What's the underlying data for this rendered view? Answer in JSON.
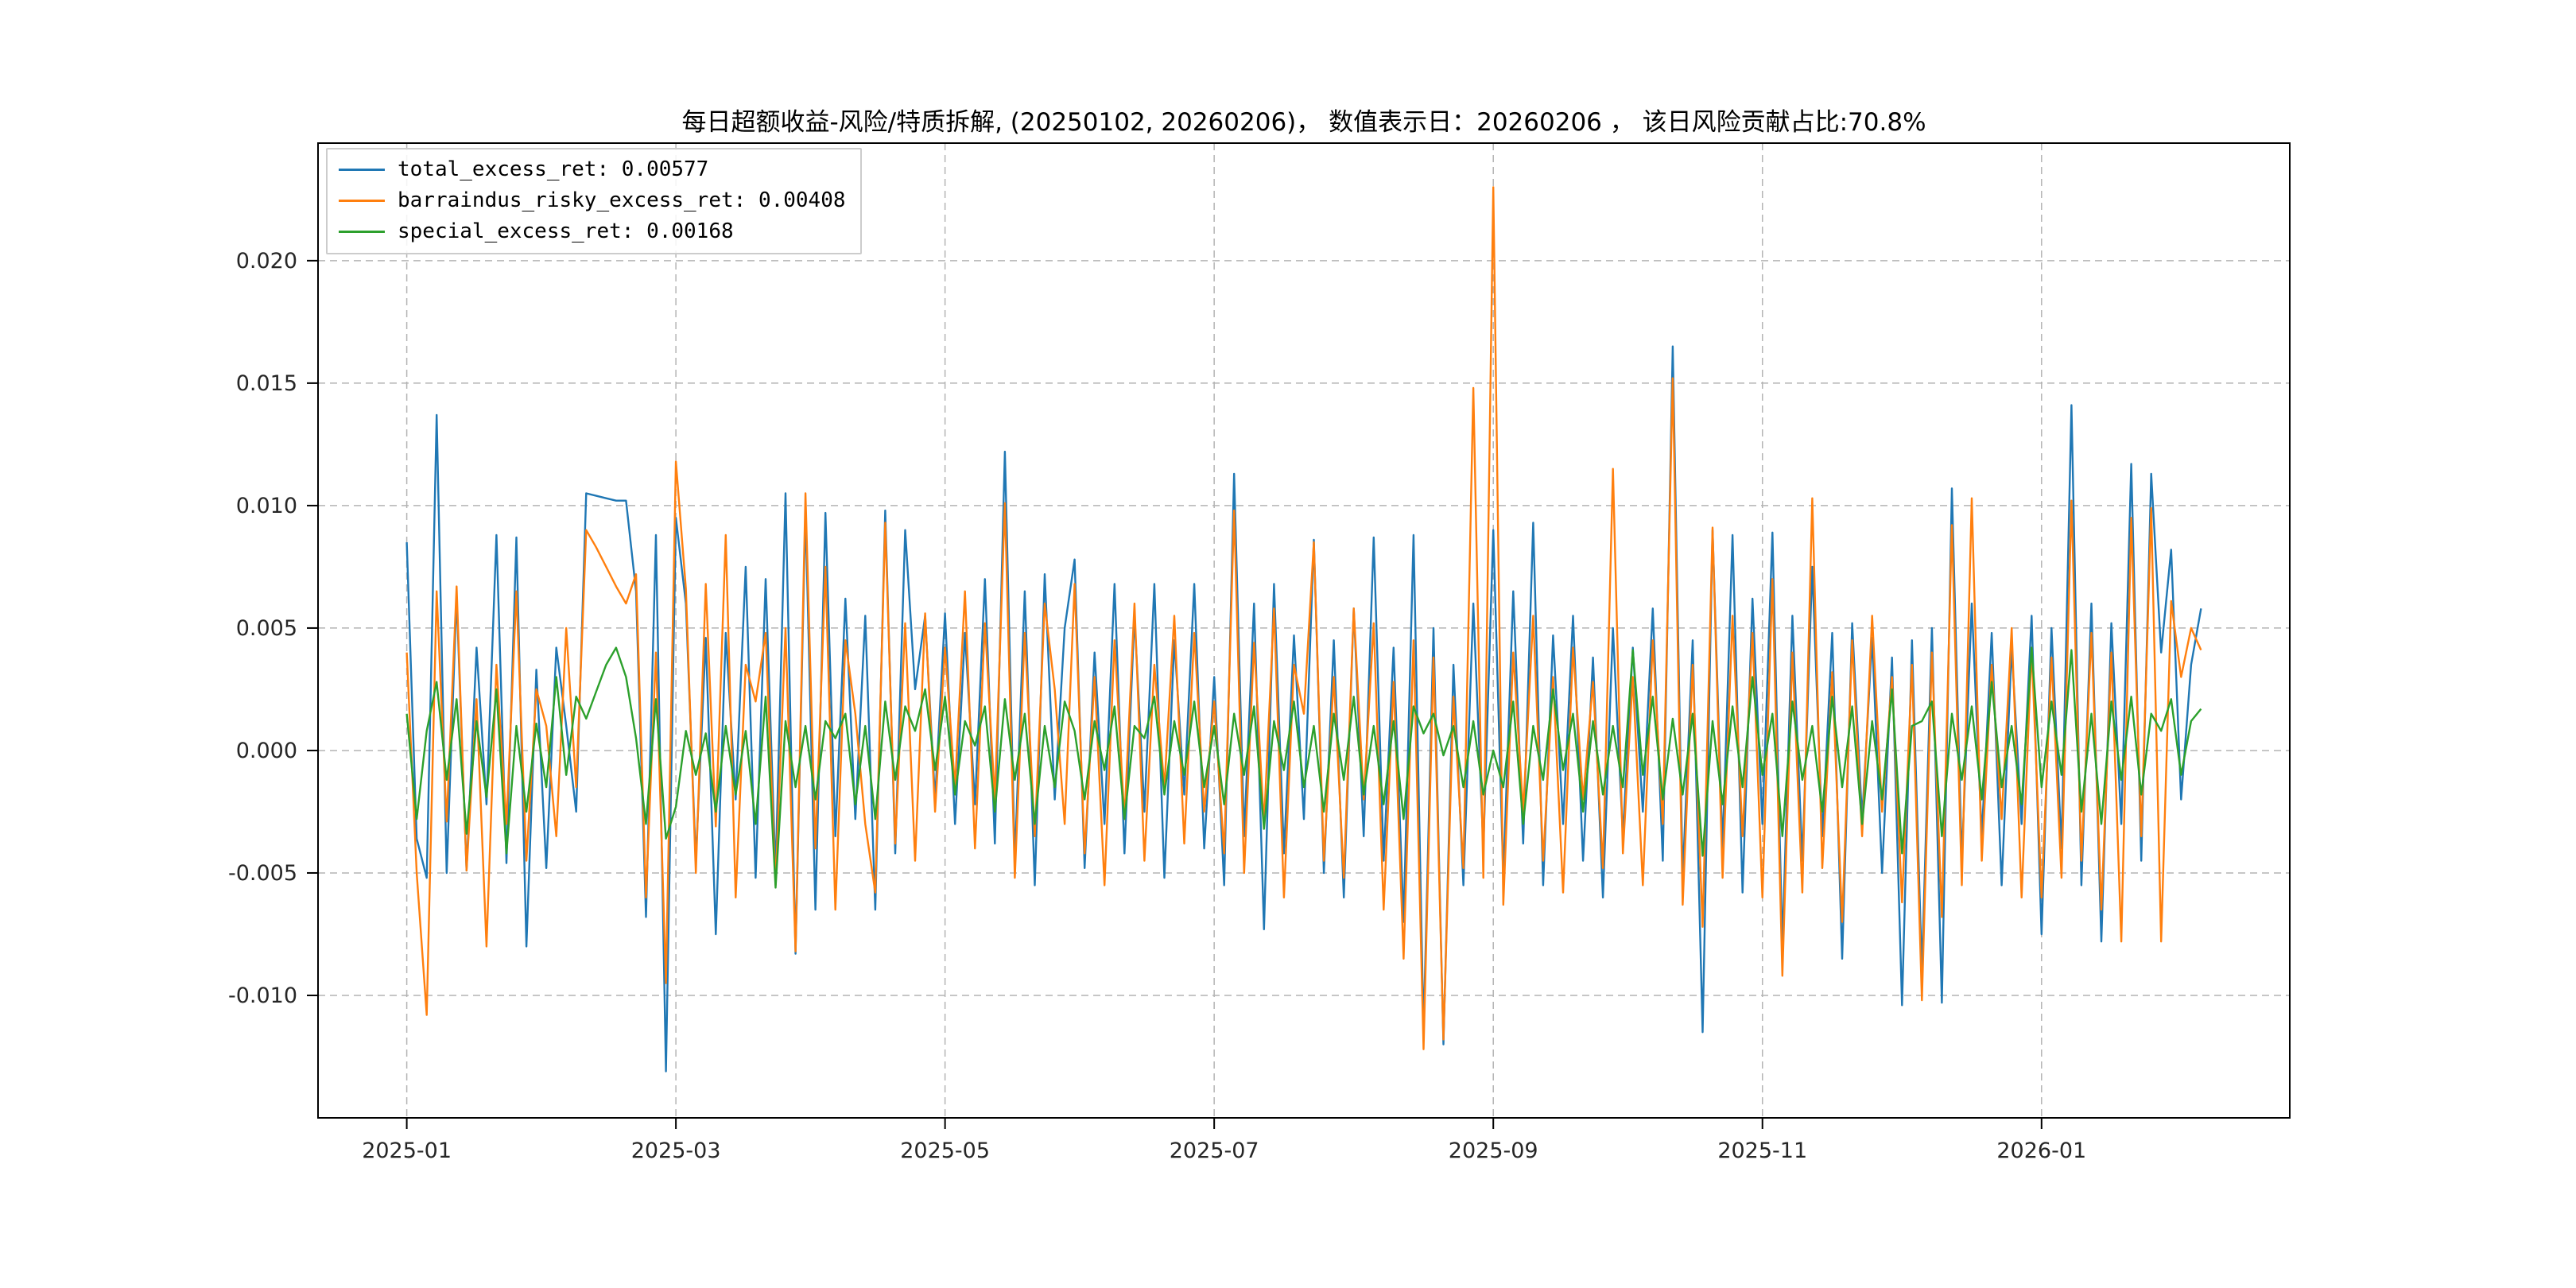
{
  "title": "每日超额收益-风险/特质拆解, (20250102, 20260206)， 数值表示日：20260206 ， 该日风险贡献占比:70.8%",
  "legend": [
    {
      "label": "total_excess_ret: 0.00577",
      "color": "#1f77b4"
    },
    {
      "label": "barraindus_risky_excess_ret: 0.00408",
      "color": "#ff7f0e"
    },
    {
      "label": "special_excess_ret: 0.00168",
      "color": "#2ca02c"
    }
  ],
  "chart_data": {
    "type": "line",
    "title": "每日超额收益-风险/特质拆解, (20250102, 20260206)， 数值表示日：20260206 ， 该日风险贡献占比:70.8%",
    "date_range": [
      "20250102",
      "20260206"
    ],
    "grid": "dashed",
    "legend_position": "upper-left",
    "x_axis": {
      "n_points": 181,
      "tick_labels": [
        "2025-01",
        "2025-03",
        "2025-05",
        "2025-07",
        "2025-09",
        "2025-11",
        "2026-01"
      ],
      "tick_indices": [
        0,
        27,
        54,
        81,
        109,
        136,
        164
      ]
    },
    "y_axis": {
      "ticks": [
        -0.01,
        -0.005,
        0.0,
        0.005,
        0.01,
        0.015,
        0.02
      ],
      "tick_labels": [
        "-0.010",
        "-0.005",
        "0.000",
        "0.005",
        "0.010",
        "0.015",
        "0.020"
      ],
      "ylim": [
        -0.015,
        0.0248
      ]
    },
    "series": [
      {
        "name": "total_excess_ret",
        "color": "#1f77b4",
        "last_value": 0.00577,
        "values": [
          0.0085,
          -0.0036,
          -0.0052,
          0.0137,
          -0.005,
          0.0063,
          -0.0049,
          0.0042,
          -0.0022,
          0.0088,
          -0.0046,
          0.0087,
          -0.008,
          0.0033,
          -0.0048,
          0.0042,
          0.001,
          -0.0025,
          0.0105,
          0.0104,
          0.0103,
          0.0102,
          0.0102,
          0.0065,
          -0.0068,
          0.0088,
          -0.0131,
          0.0095,
          0.006,
          -0.0045,
          0.0046,
          -0.0075,
          0.0048,
          -0.002,
          0.0075,
          -0.0052,
          0.007,
          -0.005,
          0.0105,
          -0.0083,
          0.0098,
          -0.0065,
          0.0097,
          -0.0035,
          0.0062,
          -0.0028,
          0.0055,
          -0.0065,
          0.0098,
          -0.0042,
          0.009,
          0.0025,
          0.0055,
          -0.002,
          0.0056,
          -0.003,
          0.0048,
          -0.0022,
          0.007,
          -0.0038,
          0.0122,
          -0.0045,
          0.0065,
          -0.0055,
          0.0072,
          -0.002,
          0.005,
          0.0078,
          -0.0048,
          0.004,
          -0.003,
          0.0068,
          -0.0042,
          0.0055,
          -0.0025,
          0.0068,
          -0.0052,
          0.0045,
          -0.0018,
          0.0068,
          -0.004,
          0.003,
          -0.0055,
          0.0113,
          -0.0035,
          0.006,
          -0.0073,
          0.0068,
          -0.0042,
          0.0047,
          -0.0028,
          0.0086,
          -0.005,
          0.0045,
          -0.006,
          0.0058,
          -0.0035,
          0.0087,
          -0.0045,
          0.0042,
          -0.007,
          0.0088,
          -0.0115,
          0.005,
          -0.012,
          0.0035,
          -0.0055,
          0.006,
          -0.004,
          0.009,
          -0.0052,
          0.0065,
          -0.0038,
          0.0093,
          -0.0055,
          0.0047,
          -0.003,
          0.0055,
          -0.0045,
          0.0038,
          -0.006,
          0.005,
          -0.0035,
          0.0042,
          -0.0025,
          0.0058,
          -0.0045,
          0.0165,
          -0.0052,
          0.0045,
          -0.0115,
          0.009,
          -0.004,
          0.0088,
          -0.0058,
          0.0062,
          -0.003,
          0.0089,
          -0.008,
          0.0055,
          -0.0045,
          0.0075,
          -0.0035,
          0.0048,
          -0.0085,
          0.0052,
          -0.0028,
          0.0046,
          -0.005,
          0.0038,
          -0.0104,
          0.0045,
          -0.009,
          0.005,
          -0.0103,
          0.0107,
          -0.0045,
          0.006,
          -0.0035,
          0.0048,
          -0.0055,
          0.0042,
          -0.003,
          0.0055,
          -0.0075,
          0.005,
          -0.004,
          0.0141,
          -0.0055,
          0.006,
          -0.0078,
          0.0052,
          -0.003,
          0.0117,
          -0.0045,
          0.0113,
          0.004,
          0.0082,
          -0.002,
          0.0035,
          0.0058
        ]
      },
      {
        "name": "barraindus_risky_excess_ret",
        "color": "#ff7f0e",
        "last_value": 0.00408,
        "values": [
          0.004,
          -0.005,
          -0.0108,
          0.0065,
          -0.0029,
          0.0067,
          -0.0049,
          0.0021,
          -0.008,
          0.0035,
          -0.003,
          0.0065,
          -0.0045,
          0.0025,
          0.001,
          -0.0035,
          0.005,
          -0.0015,
          0.009,
          0.0083,
          0.0075,
          0.0067,
          0.006,
          0.0072,
          -0.006,
          0.004,
          -0.0095,
          0.0118,
          0.0066,
          -0.005,
          0.0068,
          -0.0031,
          0.0088,
          -0.006,
          0.0035,
          0.002,
          0.0048,
          -0.0055,
          0.005,
          -0.0082,
          0.0105,
          -0.004,
          0.0075,
          -0.0065,
          0.0045,
          0.0015,
          -0.003,
          -0.0058,
          0.0093,
          -0.0038,
          0.0052,
          -0.0045,
          0.0056,
          -0.0025,
          0.0042,
          -0.0015,
          0.0065,
          -0.004,
          0.0052,
          -0.002,
          0.0101,
          -0.0052,
          0.0048,
          -0.0035,
          0.006,
          0.0025,
          -0.003,
          0.0068,
          -0.0042,
          0.003,
          -0.0055,
          0.0045,
          -0.0028,
          0.006,
          -0.0045,
          0.0035,
          -0.0015,
          0.0055,
          -0.0038,
          0.0048,
          -0.0025,
          0.002,
          -0.0042,
          0.0098,
          -0.005,
          0.0044,
          -0.003,
          0.0058,
          -0.006,
          0.0035,
          0.0015,
          0.0085,
          -0.0045,
          0.003,
          -0.0052,
          0.0058,
          -0.002,
          0.0052,
          -0.0065,
          0.0028,
          -0.0085,
          0.0045,
          -0.0122,
          0.0038,
          -0.0118,
          0.0022,
          -0.0048,
          0.0148,
          -0.0052,
          0.023,
          -0.0063,
          0.004,
          -0.0025,
          0.0055,
          -0.0045,
          0.003,
          -0.0058,
          0.0042,
          -0.002,
          0.0028,
          -0.0048,
          0.0115,
          -0.0042,
          0.003,
          -0.0055,
          0.0045,
          -0.003,
          0.0152,
          -0.0063,
          0.0035,
          -0.0072,
          0.0091,
          -0.0052,
          0.0055,
          -0.0035,
          0.0048,
          -0.006,
          0.007,
          -0.0092,
          0.004,
          -0.0058,
          0.0103,
          -0.0048,
          0.0032,
          -0.007,
          0.0045,
          -0.0035,
          0.0055,
          -0.0025,
          0.003,
          -0.0062,
          0.0035,
          -0.0102,
          0.004,
          -0.0068,
          0.0092,
          -0.0055,
          0.0103,
          -0.0045,
          0.0035,
          -0.0028,
          0.005,
          -0.006,
          0.0042,
          -0.006,
          0.0038,
          -0.0052,
          0.0102,
          -0.0045,
          0.0048,
          -0.0065,
          0.004,
          -0.0078,
          0.0095,
          -0.0035,
          0.0099,
          -0.0078,
          0.0061,
          0.003,
          0.005,
          0.0041
        ]
      },
      {
        "name": "special_excess_ret",
        "color": "#2ca02c",
        "last_value": 0.00168,
        "values": [
          0.0015,
          -0.0028,
          0.0008,
          0.0028,
          -0.0012,
          0.0021,
          -0.0034,
          0.0012,
          -0.0019,
          0.0025,
          -0.0042,
          0.001,
          -0.0025,
          0.0011,
          -0.0015,
          0.003,
          -0.001,
          0.0022,
          0.0013,
          0.0024,
          0.0035,
          0.0042,
          0.003,
          0.0005,
          -0.003,
          0.0021,
          -0.0036,
          -0.0023,
          0.0008,
          -0.001,
          0.0007,
          -0.0025,
          0.001,
          -0.0018,
          0.0008,
          -0.003,
          0.0022,
          -0.0056,
          0.0012,
          -0.0015,
          0.001,
          -0.002,
          0.0012,
          0.0005,
          0.0015,
          -0.0022,
          0.001,
          -0.0028,
          0.002,
          -0.0012,
          0.0018,
          0.0008,
          0.0025,
          -0.0008,
          0.0022,
          -0.0018,
          0.0012,
          0.0002,
          0.0018,
          -0.0025,
          0.0021,
          -0.0012,
          0.0015,
          -0.003,
          0.001,
          -0.0015,
          0.002,
          0.0008,
          -0.002,
          0.0012,
          -0.0008,
          0.0018,
          -0.0028,
          0.001,
          0.0005,
          0.0022,
          -0.0018,
          0.0012,
          -0.001,
          0.002,
          -0.0015,
          0.001,
          -0.0022,
          0.0015,
          -0.001,
          0.0018,
          -0.0032,
          0.0012,
          -0.0008,
          0.002,
          -0.0015,
          0.001,
          -0.0025,
          0.0015,
          -0.0012,
          0.0022,
          -0.0018,
          0.001,
          -0.0022,
          0.0012,
          -0.0028,
          0.0018,
          0.0007,
          0.0015,
          -0.0002,
          0.001,
          -0.0015,
          0.0012,
          -0.0018,
          0.0,
          -0.0015,
          0.002,
          -0.003,
          0.001,
          -0.0012,
          0.0025,
          -0.0008,
          0.0015,
          -0.0025,
          0.0012,
          -0.0018,
          0.001,
          -0.0015,
          0.0041,
          -0.001,
          0.0022,
          -0.002,
          0.0013,
          -0.0018,
          0.0015,
          -0.0043,
          0.0012,
          -0.0022,
          0.0018,
          -0.0015,
          0.003,
          -0.001,
          0.0015,
          -0.0035,
          0.002,
          -0.0012,
          0.001,
          -0.0025,
          0.0022,
          -0.0015,
          0.0018,
          -0.003,
          0.0012,
          -0.002,
          0.0025,
          -0.0042,
          0.001,
          0.0012,
          0.002,
          -0.0035,
          0.0015,
          -0.0012,
          0.0018,
          -0.002,
          0.0028,
          -0.0015,
          0.001,
          -0.0022,
          0.0042,
          -0.0015,
          0.002,
          -0.001,
          0.0041,
          -0.0025,
          0.0015,
          -0.003,
          0.002,
          -0.0012,
          0.0022,
          -0.0018,
          0.0015,
          0.0008,
          0.0021,
          -0.001,
          0.0012,
          0.0017
        ]
      }
    ]
  }
}
